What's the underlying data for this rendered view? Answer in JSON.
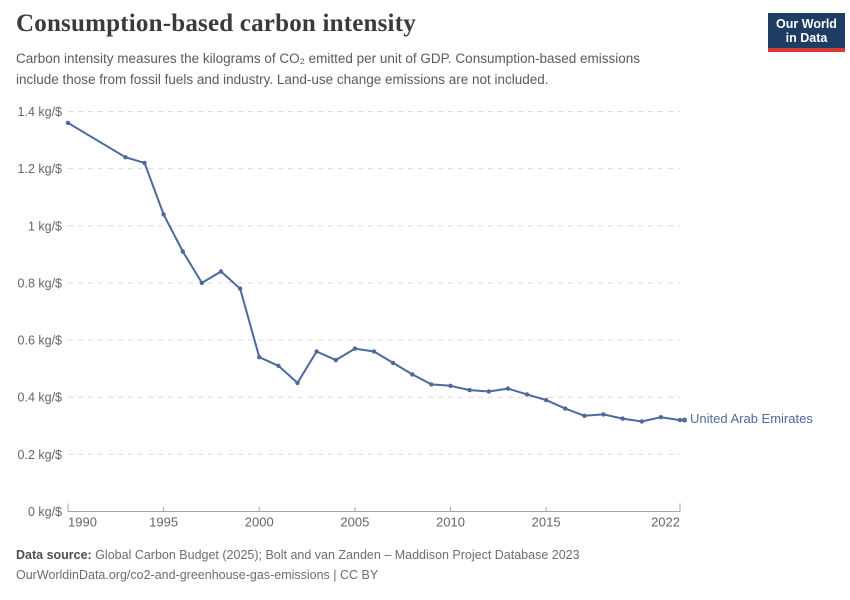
{
  "header": {
    "title": "Consumption-based carbon intensity",
    "subtitle_line1": "Carbon intensity measures the kilograms of CO₂ emitted per unit of GDP. Consumption-based emissions",
    "subtitle_line2": "include those from fossil fuels and industry. Land-use change emissions are not included."
  },
  "logo": {
    "line1": "Our World",
    "line2": "in Data",
    "bg_color": "#1d3d63",
    "bar_color": "#d73b33"
  },
  "chart_data": {
    "type": "line",
    "title": "Consumption-based carbon intensity",
    "xlabel": "",
    "ylabel": "kg/$",
    "xlim": [
      1990,
      2022
    ],
    "ylim": [
      0,
      1.4
    ],
    "grid": "horizontal dashed",
    "legend_position": "end-of-line label",
    "x_ticks": [
      1990,
      1995,
      2000,
      2005,
      2010,
      2015,
      2022
    ],
    "y_ticks": [
      {
        "value": 0,
        "label": "0 kg/$"
      },
      {
        "value": 0.2,
        "label": "0.2 kg/$"
      },
      {
        "value": 0.4,
        "label": "0.4 kg/$"
      },
      {
        "value": 0.6,
        "label": "0.6 kg/$"
      },
      {
        "value": 0.8,
        "label": "0.8 kg/$"
      },
      {
        "value": 1,
        "label": "1 kg/$"
      },
      {
        "value": 1.2,
        "label": "1.2 kg/$"
      },
      {
        "value": 1.4,
        "label": "1.4 kg/$"
      }
    ],
    "series": [
      {
        "name": "United Arab Emirates",
        "color": "#4c6a9c",
        "x": [
          1990,
          1993,
          1994,
          1995,
          1996,
          1997,
          1998,
          1999,
          2000,
          2001,
          2002,
          2003,
          2004,
          2005,
          2006,
          2007,
          2008,
          2009,
          2010,
          2011,
          2012,
          2013,
          2014,
          2015,
          2016,
          2017,
          2018,
          2019,
          2020,
          2021,
          2022
        ],
        "values": [
          1.36,
          1.24,
          1.22,
          1.04,
          0.91,
          0.8,
          0.84,
          0.78,
          0.54,
          0.51,
          0.45,
          0.56,
          0.53,
          0.57,
          0.56,
          0.52,
          0.48,
          0.445,
          0.44,
          0.425,
          0.42,
          0.43,
          0.41,
          0.39,
          0.36,
          0.335,
          0.34,
          0.325,
          0.315,
          0.33,
          0.32
        ]
      }
    ]
  },
  "footer": {
    "datasource_label": "Data source:",
    "datasource_text": " Global Carbon Budget (2025); Bolt and van Zanden – Maddison Project Database 2023",
    "note": "OurWorldinData.org/co2-and-greenhouse-gas-emissions | CC BY"
  },
  "colors": {
    "accent_blue": "#4c6a9c",
    "logo_navy": "#1d3d63",
    "logo_red": "#d73b33",
    "grid_gray": "#dcdcdc",
    "axis_gray": "#a6a6a6",
    "tick_text_gray": "#666666",
    "title_text": "#3a3a3a",
    "subtitle_text": "#5b5b5b"
  }
}
